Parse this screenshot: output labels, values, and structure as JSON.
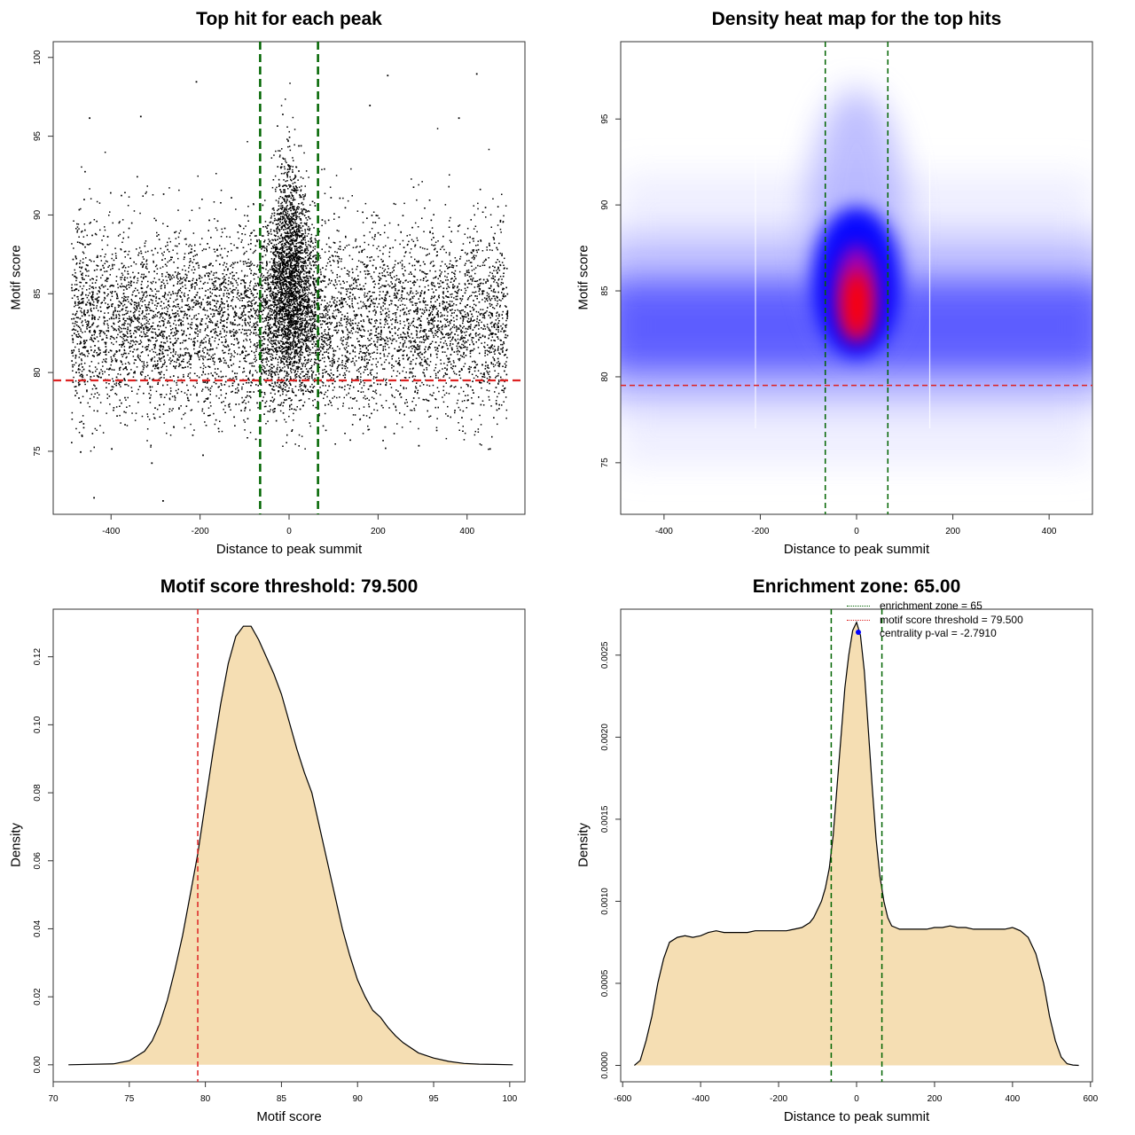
{
  "colors": {
    "threshold": "#dd2222",
    "zone": "#006400",
    "fill": "#f5deb3",
    "points": "#000000",
    "heat_high": "#ff0000",
    "heat_mid": "#0000ff",
    "centrality_dot": "#0000ff"
  },
  "chart_data": [
    {
      "type": "scatter",
      "title": "Top hit for each peak",
      "xlabel": "Distance to peak summit",
      "ylabel": "Motif score",
      "xlim": [
        -530,
        530
      ],
      "ylim": [
        71,
        101
      ],
      "xticks": [
        -400,
        -200,
        0,
        200,
        400
      ],
      "yticks": [
        75,
        80,
        85,
        90,
        95,
        100
      ],
      "threshold_y": 79.5,
      "zone_x": [
        -65,
        65
      ],
      "background": {
        "x_range": [
          -490,
          490
        ],
        "score_center": 83.3,
        "score_spread": 3.0,
        "score_min": 75.0,
        "score_max": 96.5,
        "count": 9000
      },
      "central": {
        "x_center": 0,
        "x_spread": 22,
        "score_center": 85.5,
        "score_spread": 3.6,
        "score_min": 77.5,
        "score_max": 99.5,
        "count": 3500
      },
      "outliers": [
        [
          -440,
          72.1
        ],
        [
          -285,
          71.9
        ],
        [
          -195,
          74.8
        ],
        [
          -210,
          98.5
        ],
        [
          -310,
          74.3
        ],
        [
          420,
          99
        ],
        [
          220,
          98.9
        ],
        [
          180,
          97
        ],
        [
          380,
          96.2
        ],
        [
          -450,
          96.2
        ],
        [
          -335,
          96.3
        ],
        [
          450,
          75.2
        ],
        [
          290,
          75.4
        ],
        [
          -470,
          75.0
        ],
        [
          -400,
          75.2
        ]
      ]
    },
    {
      "type": "heatmap",
      "title": "Density heat map for the top hits",
      "xlabel": "Distance to peak summit",
      "ylabel": "Motif score",
      "xlim": [
        -490,
        490
      ],
      "ylim": [
        72,
        99.5
      ],
      "xticks": [
        -400,
        -200,
        0,
        200,
        400
      ],
      "yticks": [
        75,
        80,
        85,
        90,
        95
      ],
      "threshold_y": 79.5,
      "zone_x": [
        -65,
        65
      ],
      "density_peak": {
        "x": 0,
        "y": 84.2
      },
      "background_band": {
        "y": 82.8
      },
      "seam_x": [
        -210,
        152
      ]
    },
    {
      "type": "area",
      "title": "Motif score threshold: 79.500",
      "xlabel": "Motif score",
      "ylabel": "Density",
      "xlim": [
        70,
        101
      ],
      "ylim": [
        -0.005,
        0.134
      ],
      "xticks": [
        70,
        75,
        80,
        85,
        90,
        95,
        100
      ],
      "yticks": [
        "0.00",
        "0.02",
        "0.04",
        "0.06",
        "0.08",
        "0.10",
        "0.12"
      ],
      "threshold_x": 79.5,
      "x": [
        71,
        74,
        75,
        76,
        76.5,
        77,
        77.5,
        78,
        78.5,
        79,
        79.5,
        80,
        80.5,
        81,
        81.5,
        82,
        82.5,
        83,
        83.5,
        84,
        84.5,
        85,
        85.5,
        86,
        86.5,
        87,
        87.5,
        88,
        88.5,
        89,
        89.5,
        90,
        90.5,
        91,
        91.5,
        92,
        92.5,
        93,
        94,
        95,
        96,
        97,
        98,
        99,
        100.2
      ],
      "y": [
        0,
        0.0003,
        0.0012,
        0.004,
        0.007,
        0.012,
        0.019,
        0.028,
        0.038,
        0.05,
        0.062,
        0.077,
        0.092,
        0.106,
        0.118,
        0.126,
        0.129,
        0.129,
        0.125,
        0.12,
        0.115,
        0.109,
        0.101,
        0.093,
        0.086,
        0.08,
        0.07,
        0.06,
        0.05,
        0.04,
        0.032,
        0.025,
        0.02,
        0.016,
        0.014,
        0.011,
        0.0085,
        0.0065,
        0.0035,
        0.002,
        0.001,
        0.0004,
        0.0002,
        0.0001,
        0
      ]
    },
    {
      "type": "area",
      "title": "Enrichment zone: 65.00",
      "xlabel": "Distance to peak summit",
      "ylabel": "Density",
      "xlim": [
        -605,
        605
      ],
      "ylim": [
        -0.0001,
        0.00278
      ],
      "xticks": [
        -600,
        -400,
        -200,
        0,
        200,
        400,
        600
      ],
      "yticks": [
        "0.0000",
        "0.0005",
        "0.0010",
        "0.0015",
        "0.0020",
        "0.0025"
      ],
      "zone_x": [
        -65,
        65
      ],
      "x": [
        -570,
        -555,
        -540,
        -525,
        -510,
        -495,
        -480,
        -460,
        -440,
        -420,
        -400,
        -380,
        -360,
        -340,
        -320,
        -300,
        -280,
        -260,
        -240,
        -220,
        -200,
        -180,
        -160,
        -140,
        -120,
        -110,
        -100,
        -90,
        -80,
        -70,
        -60,
        -50,
        -40,
        -30,
        -20,
        -10,
        0,
        10,
        20,
        30,
        40,
        50,
        60,
        70,
        80,
        90,
        100,
        110,
        120,
        140,
        160,
        180,
        200,
        220,
        240,
        260,
        280,
        300,
        320,
        340,
        360,
        380,
        400,
        420,
        440,
        460,
        480,
        495,
        510,
        525,
        540,
        555,
        570
      ],
      "y": [
        0,
        3e-05,
        0.00015,
        0.0003,
        0.0005,
        0.00065,
        0.00075,
        0.00078,
        0.00079,
        0.00078,
        0.00079,
        0.00081,
        0.00082,
        0.00081,
        0.00081,
        0.00081,
        0.00081,
        0.00082,
        0.00082,
        0.00082,
        0.00082,
        0.00082,
        0.00083,
        0.00084,
        0.00087,
        0.0009,
        0.00095,
        0.001,
        0.00108,
        0.0012,
        0.0014,
        0.0017,
        0.002,
        0.0023,
        0.0025,
        0.00265,
        0.0027,
        0.00262,
        0.0024,
        0.00205,
        0.0017,
        0.00138,
        0.00115,
        0.001,
        0.0009,
        0.00085,
        0.00084,
        0.00083,
        0.00083,
        0.00083,
        0.00083,
        0.00083,
        0.00084,
        0.00084,
        0.00085,
        0.00084,
        0.00084,
        0.00083,
        0.00083,
        0.00083,
        0.00083,
        0.00083,
        0.00084,
        0.00082,
        0.00078,
        0.00068,
        0.0005,
        0.0003,
        0.00015,
        5e-05,
        1e-05,
        2e-06,
        0
      ]
    }
  ],
  "legend": [
    {
      "label": "enrichment zone = 65",
      "style": "dotted",
      "color": "#006400"
    },
    {
      "label": "motif score threshold = 79.500",
      "style": "dotted",
      "color": "#dd2222"
    },
    {
      "label": "centrality p-val = -2.7910",
      "style": "dot",
      "color": "#0000ff"
    }
  ]
}
